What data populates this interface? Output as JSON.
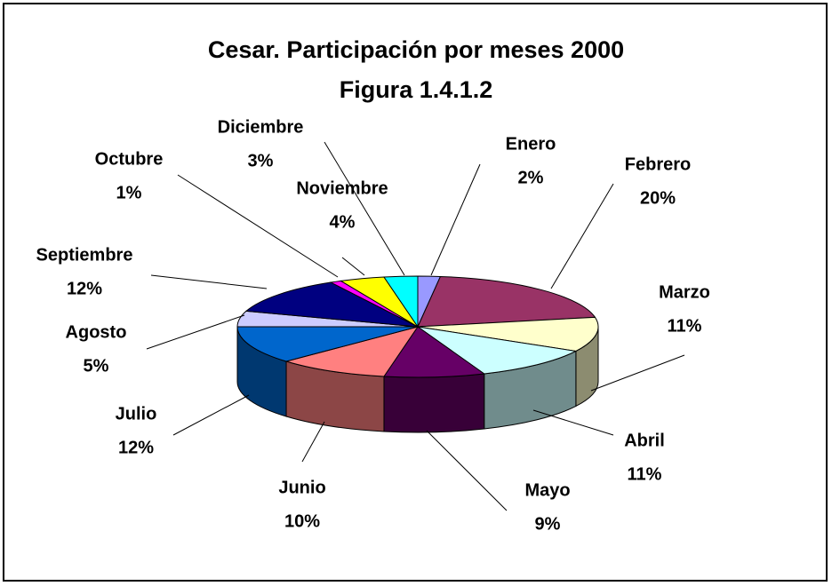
{
  "chart_data": {
    "type": "pie3d",
    "title": "Cesar. Participación por meses 2000",
    "subtitle": "Figura 1.4.1.2",
    "categories": [
      "Enero",
      "Febrero",
      "Marzo",
      "Abril",
      "Mayo",
      "Junio",
      "Julio",
      "Agosto",
      "Septiembre",
      "Octubre",
      "Noviembre",
      "Diciembre"
    ],
    "values": [
      2,
      20,
      11,
      11,
      9,
      10,
      12,
      5,
      12,
      1,
      4,
      3
    ],
    "value_labels": [
      "2%",
      "20%",
      "11%",
      "11%",
      "9%",
      "10%",
      "12%",
      "5%",
      "12%",
      "1%",
      "4%",
      "3%"
    ],
    "colors": [
      "#9999ff",
      "#993366",
      "#ffffcc",
      "#ccffff",
      "#660066",
      "#ff8080",
      "#0066cc",
      "#ccccff",
      "#000080",
      "#ff00ff",
      "#ffff00",
      "#00ffff"
    ]
  }
}
